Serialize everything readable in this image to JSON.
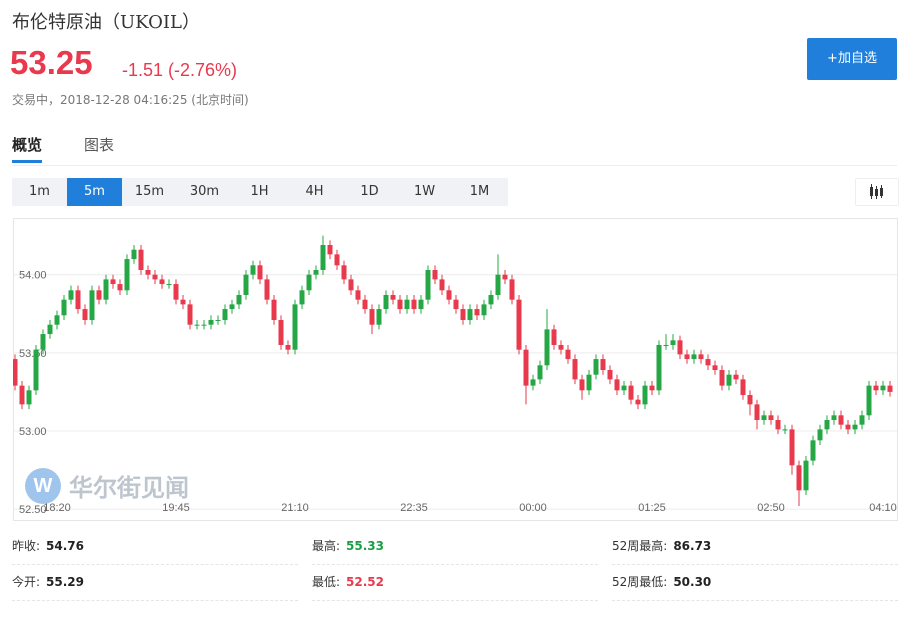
{
  "header": {
    "title": "布伦特原油",
    "code": "（UKOIL）",
    "price": "53.25",
    "change": "-1.51 (-2.76%)",
    "status": "交易中，2018-12-28 04:16:25 (北京时间)",
    "button": "+加自选"
  },
  "tabs": [
    "概览",
    "图表"
  ],
  "periods": [
    "1m",
    "5m",
    "15m",
    "30m",
    "1H",
    "4H",
    "1D",
    "1W",
    "1M"
  ],
  "active_period": 1,
  "watermark": "华尔街见闻",
  "chart_data": {
    "type": "candlestick",
    "up_color": "#25a745",
    "down_color": "#e8394d",
    "ylim": [
      52.43,
      54.35
    ],
    "yticks": [
      {
        "value": 52.5,
        "label": "52.50"
      },
      {
        "value": 53,
        "label": "53.00"
      },
      {
        "value": 53.5,
        "label": "53.50"
      },
      {
        "value": 54,
        "label": "54.00"
      }
    ],
    "grid": true,
    "categories": [
      null,
      null,
      null,
      null,
      null,
      null,
      "18:20",
      null,
      null,
      null,
      null,
      null,
      null,
      null,
      null,
      null,
      null,
      null,
      null,
      null,
      null,
      null,
      null,
      "19:45",
      null,
      null,
      null,
      null,
      null,
      null,
      null,
      null,
      null,
      null,
      null,
      null,
      null,
      null,
      null,
      null,
      "21:10",
      null,
      null,
      null,
      null,
      null,
      null,
      null,
      null,
      null,
      null,
      null,
      null,
      null,
      null,
      null,
      null,
      "22:35",
      null,
      null,
      null,
      null,
      null,
      null,
      null,
      null,
      null,
      null,
      null,
      null,
      null,
      null,
      null,
      null,
      "00:00",
      null,
      null,
      null,
      null,
      null,
      null,
      null,
      null,
      null,
      null,
      null,
      null,
      null,
      null,
      null,
      null,
      "01:25",
      null,
      null,
      null,
      null,
      null,
      null,
      null,
      null,
      null,
      null,
      null,
      null,
      null,
      null,
      null,
      null,
      "02:50",
      null,
      null,
      null,
      null,
      null,
      null,
      null,
      null,
      null,
      null,
      null,
      null,
      null,
      null,
      null,
      "04:10",
      null
    ],
    "open": [
      53.46,
      53.29,
      53.17,
      53.26,
      53.52,
      53.62,
      53.68,
      53.74,
      53.84,
      53.9,
      53.78,
      53.71,
      53.9,
      53.84,
      53.97,
      53.94,
      53.9,
      54.1,
      54.16,
      54.03,
      54.0,
      53.97,
      53.94,
      53.94,
      53.84,
      53.81,
      53.68,
      53.68,
      53.68,
      53.71,
      53.71,
      53.78,
      53.81,
      53.87,
      54.0,
      54.06,
      53.97,
      53.84,
      53.71,
      53.55,
      53.52,
      53.81,
      53.9,
      54.0,
      54.03,
      54.19,
      54.13,
      54.06,
      53.97,
      53.9,
      53.84,
      53.78,
      53.68,
      53.78,
      53.87,
      53.84,
      53.78,
      53.84,
      53.78,
      53.84,
      54.03,
      53.97,
      53.9,
      53.84,
      53.78,
      53.71,
      53.78,
      53.74,
      53.81,
      53.87,
      54.0,
      53.97,
      53.84,
      53.52,
      53.29,
      53.33,
      53.42,
      53.65,
      53.55,
      53.52,
      53.46,
      53.33,
      53.26,
      53.36,
      53.46,
      53.39,
      53.33,
      53.26,
      53.29,
      53.2,
      53.17,
      53.29,
      53.26,
      53.55,
      53.55,
      53.58,
      53.49,
      53.46,
      53.49,
      53.46,
      53.42,
      53.39,
      53.29,
      53.36,
      53.33,
      53.23,
      53.17,
      53.07,
      53.1,
      53.07,
      53.01,
      53.01,
      52.78,
      52.62,
      52.81,
      52.94,
      53.01,
      53.07,
      53.1,
      53.04,
      53.01,
      53.04,
      53.1,
      53.29,
      53.26,
      53.29
    ],
    "high": [
      53.49,
      53.32,
      53.29,
      53.55,
      53.65,
      53.71,
      53.77,
      53.87,
      53.93,
      53.93,
      53.81,
      53.93,
      53.93,
      54.0,
      54.0,
      53.97,
      54.13,
      54.19,
      54.19,
      54.06,
      54.03,
      54.0,
      53.97,
      53.97,
      53.87,
      53.84,
      53.71,
      53.71,
      53.74,
      53.74,
      53.81,
      53.84,
      53.9,
      54.03,
      54.09,
      54.09,
      54.0,
      53.87,
      53.74,
      53.58,
      53.84,
      53.93,
      54.03,
      54.06,
      54.25,
      54.22,
      54.16,
      54.09,
      54.0,
      53.93,
      53.87,
      53.81,
      53.81,
      53.9,
      53.9,
      53.87,
      53.87,
      53.87,
      53.87,
      54.06,
      54.06,
      54.0,
      53.93,
      53.87,
      53.81,
      53.81,
      53.81,
      53.84,
      53.9,
      54.13,
      54.03,
      54.0,
      53.87,
      53.55,
      53.36,
      53.45,
      53.78,
      53.68,
      53.58,
      53.55,
      53.49,
      53.36,
      53.39,
      53.49,
      53.49,
      53.42,
      53.36,
      53.32,
      53.32,
      53.23,
      53.32,
      53.32,
      53.58,
      53.62,
      53.62,
      53.61,
      53.52,
      53.52,
      53.52,
      53.49,
      53.45,
      53.42,
      53.39,
      53.39,
      53.36,
      53.26,
      53.2,
      53.13,
      53.13,
      53.1,
      53.04,
      53.04,
      52.81,
      52.84,
      52.97,
      53.04,
      53.1,
      53.13,
      53.13,
      53.07,
      53.07,
      53.13,
      53.32,
      53.32,
      53.32,
      53.32
    ],
    "low": [
      53.26,
      53.14,
      53.14,
      53.23,
      53.49,
      53.59,
      53.65,
      53.71,
      53.81,
      53.75,
      53.68,
      53.68,
      53.81,
      53.81,
      53.91,
      53.87,
      53.87,
      54.07,
      54.0,
      53.97,
      53.94,
      53.91,
      53.91,
      53.81,
      53.78,
      53.65,
      53.65,
      53.65,
      53.65,
      53.68,
      53.68,
      53.75,
      53.78,
      53.84,
      53.97,
      53.94,
      53.81,
      53.68,
      53.52,
      53.49,
      53.49,
      53.78,
      53.87,
      53.97,
      54.0,
      54.1,
      54.03,
      53.94,
      53.87,
      53.81,
      53.75,
      53.62,
      53.65,
      53.75,
      53.81,
      53.75,
      53.75,
      53.75,
      53.75,
      53.81,
      53.94,
      53.87,
      53.81,
      53.75,
      53.68,
      53.68,
      53.71,
      53.71,
      53.78,
      53.84,
      53.94,
      53.81,
      53.49,
      53.17,
      53.26,
      53.3,
      53.39,
      53.52,
      53.49,
      53.43,
      53.3,
      53.2,
      53.23,
      53.33,
      53.36,
      53.3,
      53.23,
      53.23,
      53.17,
      53.14,
      53.14,
      53.23,
      53.23,
      53.52,
      53.52,
      53.46,
      53.43,
      53.43,
      53.43,
      53.39,
      53.36,
      53.26,
      53.26,
      53.3,
      53.2,
      53.1,
      53.01,
      53.04,
      53.04,
      52.98,
      52.98,
      52.72,
      52.52,
      52.59,
      52.78,
      52.91,
      52.98,
      53.04,
      53.01,
      52.98,
      52.98,
      53.01,
      53.07,
      53.23,
      53.23,
      53.22
    ],
    "close": [
      53.29,
      53.17,
      53.26,
      53.52,
      53.62,
      53.68,
      53.74,
      53.84,
      53.9,
      53.78,
      53.71,
      53.9,
      53.84,
      53.97,
      53.94,
      53.9,
      54.1,
      54.16,
      54.03,
      54.0,
      53.97,
      53.94,
      53.94,
      53.84,
      53.81,
      53.68,
      53.68,
      53.68,
      53.71,
      53.71,
      53.78,
      53.81,
      53.87,
      54.0,
      54.06,
      53.97,
      53.84,
      53.71,
      53.55,
      53.52,
      53.81,
      53.9,
      54.0,
      54.03,
      54.19,
      54.13,
      54.06,
      53.97,
      53.9,
      53.84,
      53.78,
      53.68,
      53.78,
      53.87,
      53.84,
      53.78,
      53.84,
      53.78,
      53.84,
      54.03,
      53.97,
      53.9,
      53.84,
      53.78,
      53.71,
      53.78,
      53.74,
      53.81,
      53.87,
      54.0,
      53.97,
      53.84,
      53.52,
      53.29,
      53.33,
      53.42,
      53.65,
      53.55,
      53.52,
      53.46,
      53.33,
      53.26,
      53.36,
      53.46,
      53.39,
      53.33,
      53.26,
      53.29,
      53.2,
      53.17,
      53.29,
      53.26,
      53.55,
      53.55,
      53.58,
      53.49,
      53.46,
      53.49,
      53.46,
      53.42,
      53.39,
      53.29,
      53.36,
      53.33,
      53.23,
      53.17,
      53.07,
      53.1,
      53.07,
      53.01,
      53.01,
      52.78,
      52.62,
      52.81,
      52.94,
      53.01,
      53.07,
      53.1,
      53.04,
      53.01,
      53.04,
      53.1,
      53.29,
      53.26,
      53.29,
      53.25
    ]
  },
  "stats": [
    [
      {
        "label": "昨收:",
        "value": "54.76"
      },
      {
        "label": "最高:",
        "value": "55.33"
      },
      {
        "label": "52周最高:",
        "value": "86.73"
      }
    ],
    [
      {
        "label": "今开:",
        "value": "55.29"
      },
      {
        "label": "最低:",
        "value": "52.52"
      },
      {
        "label": "52周最低:",
        "value": "50.30"
      }
    ]
  ]
}
